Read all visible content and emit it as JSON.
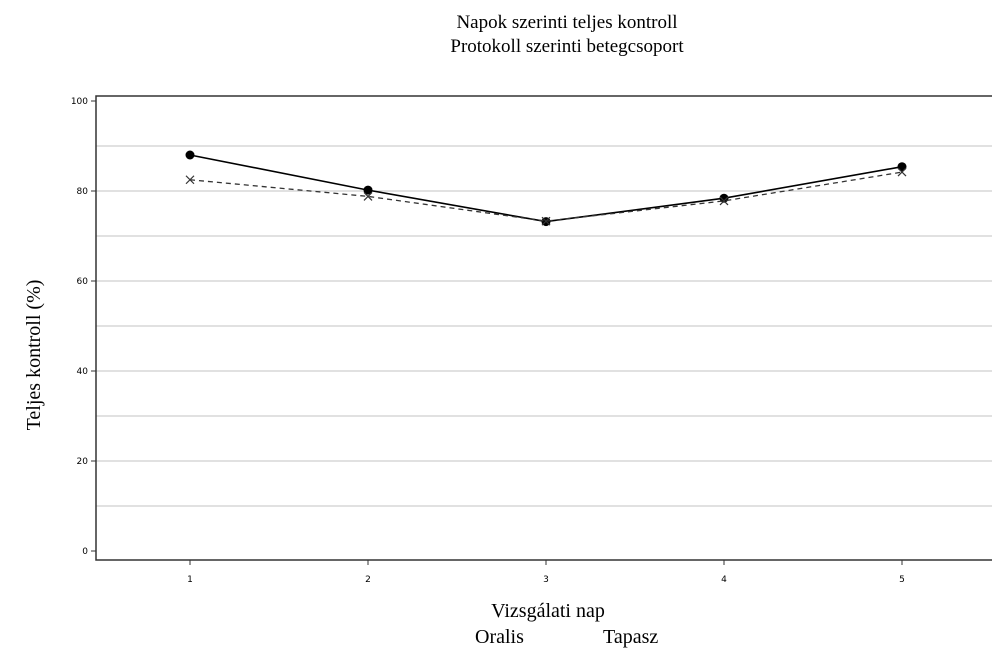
{
  "chart_data": {
    "type": "line",
    "title": "Napok szerinti teljes kontroll",
    "subtitle": "Protokoll szerinti betegcsoport",
    "xlabel": "Vizsgálati nap",
    "ylabel": "Teljes kontroll  (%)",
    "x": [
      1,
      2,
      3,
      4,
      5
    ],
    "xticks": [
      "1",
      "2",
      "3",
      "4",
      "5"
    ],
    "yticks": [
      "0",
      "20",
      "40",
      "60",
      "80",
      "100"
    ],
    "ylim": [
      0,
      100
    ],
    "grid": true,
    "legend_position": "bottom",
    "series": [
      {
        "name": "Oralis",
        "values": [
          88,
          80.2,
          73.2,
          78.4,
          85.4
        ],
        "line_style": "solid",
        "marker": "filled-circle",
        "color": "#000000"
      },
      {
        "name": "Tapasz",
        "values": [
          82.5,
          78.8,
          73.3,
          77.8,
          84.2
        ],
        "line_style": "dashed",
        "marker": "cross",
        "color": "#333333"
      }
    ]
  }
}
